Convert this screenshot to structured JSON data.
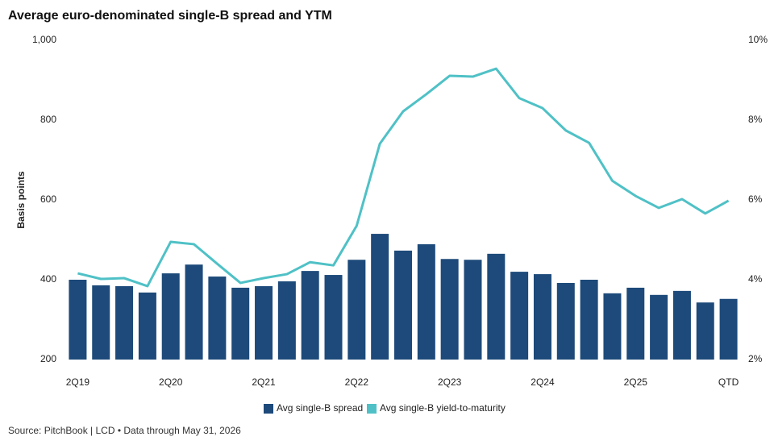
{
  "chart_data": {
    "type": "bar-line",
    "title": "Average euro-denominated single-B spread and YTM",
    "y_label": "Basis points",
    "source": "Source: PitchBook | LCD • Data through May 31, 2026",
    "categories": [
      "2Q19",
      null,
      null,
      null,
      "2Q20",
      null,
      null,
      null,
      "2Q21",
      null,
      null,
      null,
      "2Q22",
      null,
      null,
      null,
      "2Q23",
      null,
      null,
      null,
      "2Q24",
      null,
      null,
      null,
      "2Q25",
      null,
      null,
      null,
      "QTD"
    ],
    "series": [
      {
        "name": "Avg single-B spread",
        "type": "bar",
        "color": "#1d4a7a",
        "values": [
          400,
          386,
          384,
          368,
          416,
          438,
          408,
          380,
          384,
          396,
          422,
          412,
          450,
          515,
          473,
          489,
          452,
          450,
          465,
          420,
          414,
          392,
          400,
          366,
          380,
          362,
          372,
          343,
          352
        ]
      },
      {
        "name": "Avg single-B yield-to-maturity",
        "type": "line",
        "axis": "y2",
        "color": "#4fc1c6",
        "values": [
          4.16,
          4.02,
          4.04,
          3.84,
          4.95,
          4.89,
          4.4,
          3.92,
          4.04,
          4.14,
          4.44,
          4.36,
          5.35,
          7.41,
          8.22,
          8.65,
          9.11,
          9.09,
          9.29,
          8.55,
          8.3,
          7.74,
          7.43,
          6.48,
          6.1,
          5.8,
          6.02,
          5.66,
          5.98
        ]
      }
    ],
    "ylim": [
      200,
      1000
    ],
    "yticks": [
      200,
      400,
      600,
      800,
      {
        "value": 1000,
        "label": "1,000"
      }
    ],
    "y2lim": [
      2,
      10
    ],
    "y2ticks": [
      {
        "value": 2,
        "label": "2%"
      },
      {
        "value": 4,
        "label": "4%"
      },
      {
        "value": 6,
        "label": "6%"
      },
      {
        "value": 8,
        "label": "8%"
      },
      {
        "value": 10,
        "label": "10%"
      }
    ],
    "grid": false,
    "legend": "bottom"
  }
}
